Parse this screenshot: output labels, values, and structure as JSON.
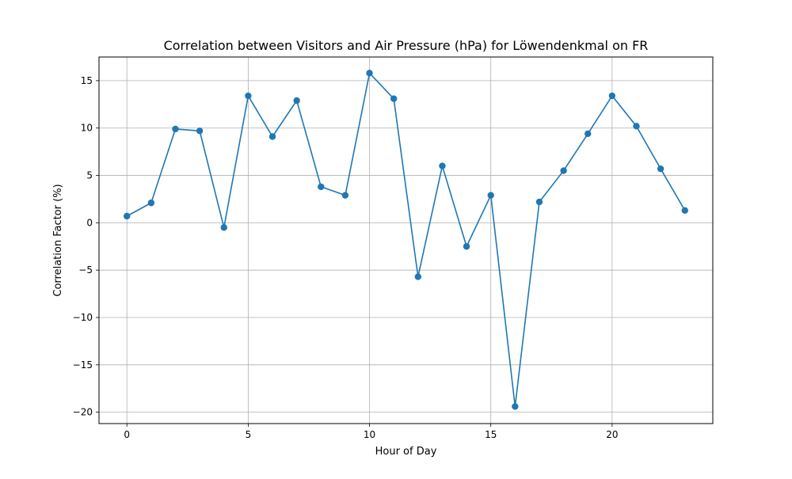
{
  "chart_data": {
    "type": "line",
    "title": "Correlation between Visitors and Air Pressure (hPa) for Löwendenkmal on FR",
    "xlabel": "Hour of Day",
    "ylabel": "Correlation Factor (%)",
    "xlim": [
      -1.15,
      24.15
    ],
    "ylim": [
      -21.2,
      17.5
    ],
    "x_ticks": [
      0,
      5,
      10,
      15,
      20
    ],
    "x_tick_labels": [
      "0",
      "5",
      "10",
      "15",
      "20"
    ],
    "y_ticks": [
      -20,
      -15,
      -10,
      -5,
      0,
      5,
      10,
      15
    ],
    "y_tick_labels": [
      "−20",
      "−15",
      "−10",
      "−5",
      "0",
      "5",
      "10",
      "15"
    ],
    "grid": true,
    "line_color": "#1f77b4",
    "marker": "circle",
    "series": [
      {
        "x": [
          0,
          1,
          2,
          3,
          4,
          5,
          6,
          7,
          8,
          9,
          10,
          11,
          12,
          13,
          14,
          15,
          16,
          17,
          18,
          19,
          20,
          21,
          22,
          23
        ],
        "values": [
          0.7,
          2.1,
          9.9,
          9.7,
          -0.5,
          13.4,
          9.1,
          12.9,
          3.8,
          2.9,
          15.8,
          13.1,
          -5.7,
          6.0,
          -2.5,
          2.9,
          -19.4,
          2.2,
          5.5,
          9.4,
          13.4,
          10.2,
          5.7,
          1.3
        ]
      }
    ]
  }
}
